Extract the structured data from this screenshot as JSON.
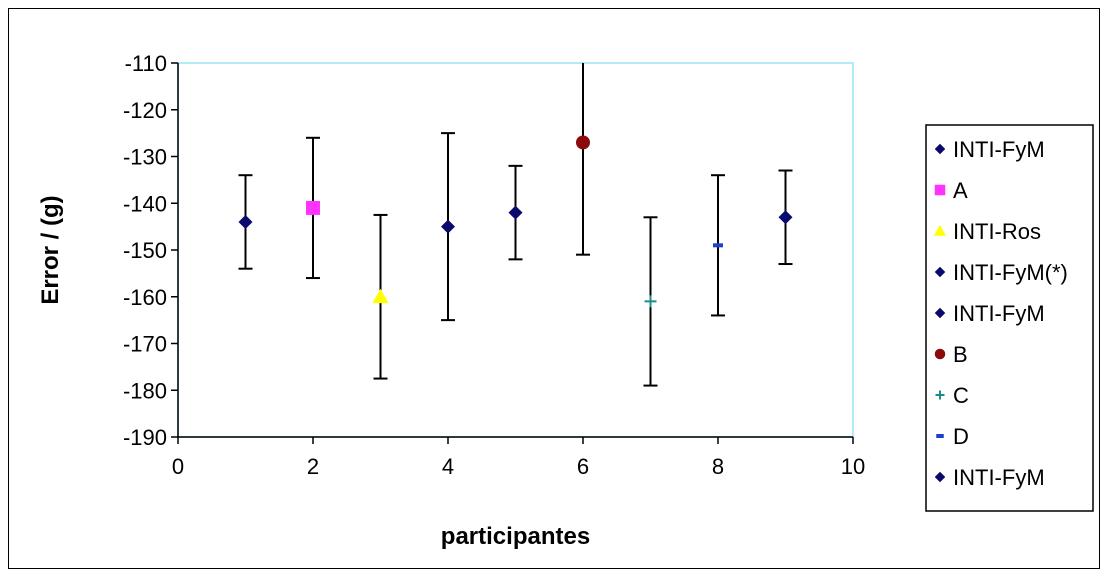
{
  "chart_data": {
    "type": "scatter",
    "title": "",
    "xlabel": "participantes",
    "ylabel": "Error / (g)",
    "xlim": [
      0,
      10
    ],
    "ylim": [
      -190,
      -110
    ],
    "xticks": [
      0,
      2,
      4,
      6,
      8,
      10
    ],
    "yticks": [
      -110,
      -120,
      -130,
      -140,
      -150,
      -160,
      -170,
      -180,
      -190
    ],
    "grid": false,
    "legend_position": "right",
    "colors": {
      "plot_border": "#b3ecf5",
      "error_bar": "#000000"
    },
    "series": [
      {
        "name": "INTI-FyM",
        "marker": "diamond",
        "color": "#0a0a6e",
        "x": 1,
        "y": -144,
        "err_low": -154,
        "err_high": -134
      },
      {
        "name": "A",
        "marker": "square",
        "color": "#ff33ff",
        "x": 2,
        "y": -141,
        "err_low": -156,
        "err_high": -126
      },
      {
        "name": "INTI-Ros",
        "marker": "triangle",
        "color": "#ffff00",
        "x": 3,
        "y": -160,
        "err_low": -177.5,
        "err_high": -142.5
      },
      {
        "name": "INTI-FyM(*)",
        "marker": "diamond",
        "color": "#0a0a6e",
        "x": 4,
        "y": -145,
        "err_low": -165,
        "err_high": -125
      },
      {
        "name": "INTI-FyM",
        "marker": "diamond",
        "color": "#0a0a6e",
        "x": 5,
        "y": -142,
        "err_low": -152,
        "err_high": -132
      },
      {
        "name": "B",
        "marker": "circle",
        "color": "#8b0a0a",
        "x": 6,
        "y": -127,
        "err_low": -151,
        "err_high": -110
      },
      {
        "name": "C",
        "marker": "plus",
        "color": "#1a8c8c",
        "x": 7,
        "y": -161,
        "err_low": -179,
        "err_high": -143
      },
      {
        "name": "D",
        "marker": "dash",
        "color": "#1f3fcf",
        "x": 8,
        "y": -149,
        "err_low": -164,
        "err_high": -134
      },
      {
        "name": "INTI-FyM",
        "marker": "diamond",
        "color": "#0a0a6e",
        "x": 9,
        "y": -143,
        "err_low": -153,
        "err_high": -133
      }
    ]
  }
}
